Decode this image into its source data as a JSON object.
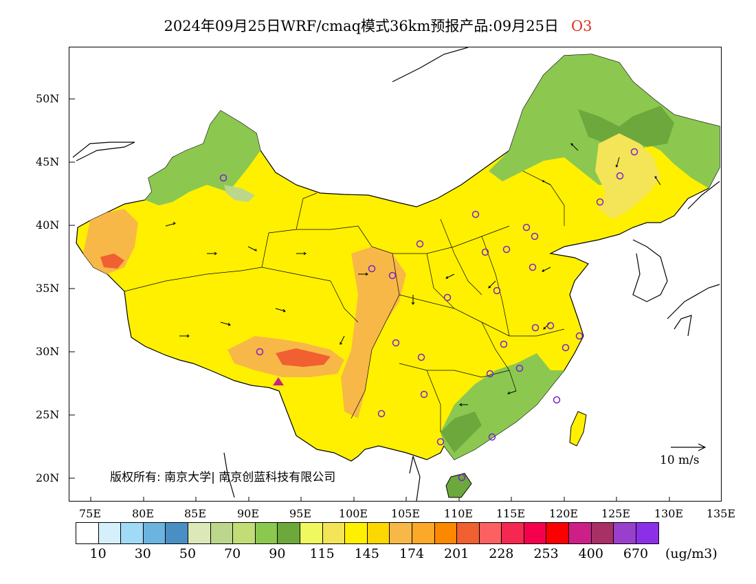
{
  "header": {
    "title": "2024年09月25日WRF/cmaq模式36km预报产品:09月25日",
    "pollutant": "O3"
  },
  "axes": {
    "lat_labels": [
      "50N",
      "45N",
      "40N",
      "35N",
      "30N",
      "25N",
      "20N"
    ],
    "lon_labels": [
      "75E",
      "80E",
      "85E",
      "90E",
      "95E",
      "100E",
      "105E",
      "110E",
      "115E",
      "120E",
      "125E",
      "130E",
      "135E"
    ]
  },
  "copyright": "版权所有: 南京大学| 南京创蓝科技有限公司",
  "wind_reference": "10 m/s",
  "legend": {
    "labels": [
      "10",
      "30",
      "50",
      "70",
      "90",
      "115",
      "145",
      "174",
      "201",
      "228",
      "253",
      "400",
      "670"
    ],
    "unit": "(ug/m3)",
    "colors": [
      "#ffffff",
      "#d6f0fb",
      "#a0daf5",
      "#6cb4e0",
      "#4a8fc4",
      "#dde8b8",
      "#bcd68c",
      "#c2dd78",
      "#8cc850",
      "#6ca83c",
      "#f0f860",
      "#f4e458",
      "#fff000",
      "#fcd800",
      "#f8b848",
      "#fca828",
      "#fc8800",
      "#f06030",
      "#fc6060",
      "#f42850",
      "#f4004c",
      "#fc0000",
      "#cc2088",
      "#a83064",
      "#9840cc",
      "#8c30e8"
    ]
  },
  "colors": {
    "outline": "#000000",
    "station_marker": "#7a20d0",
    "vector": "#000000"
  },
  "stations_label": "city markers",
  "colorbar_breaks_count": 26
}
